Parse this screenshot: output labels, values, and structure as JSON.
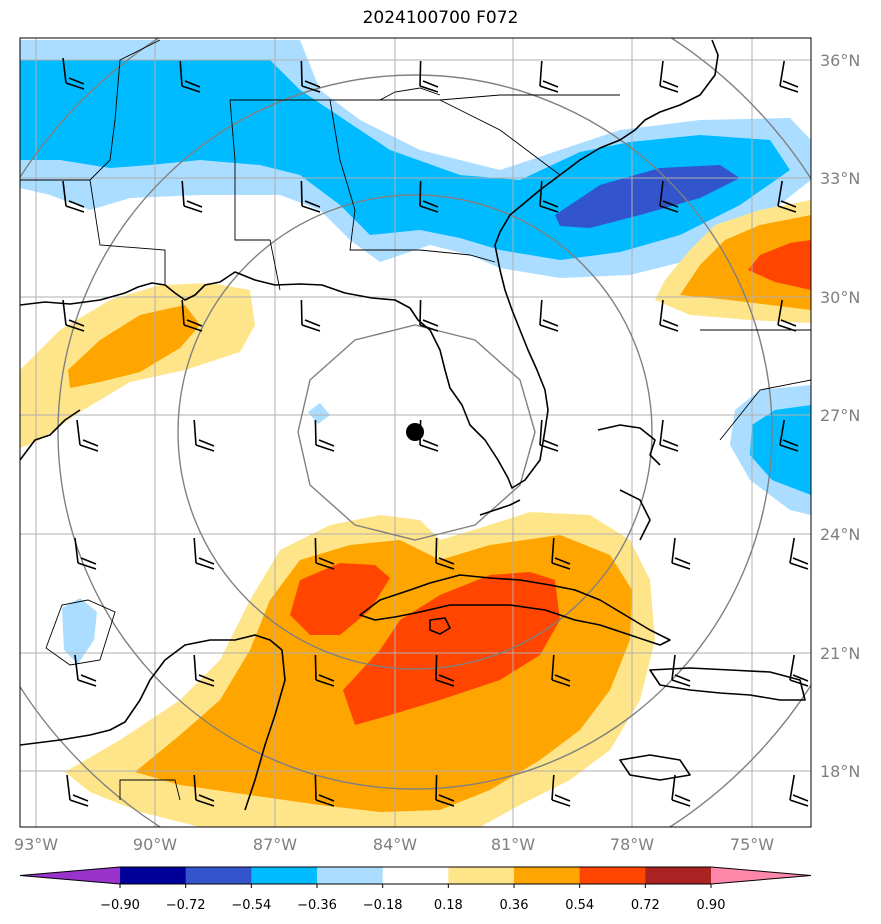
{
  "title": "2024100700 F072",
  "map": {
    "lat_labels": [
      "36°N",
      "33°N",
      "30°N",
      "27°N",
      "24°N",
      "21°N",
      "18°N"
    ],
    "lon_labels": [
      "93°W",
      "90°W",
      "87°W",
      "84°W",
      "81°W",
      "78°W",
      "75°W"
    ],
    "storm_center": {
      "lat": 26.5,
      "lon": -83.5
    }
  },
  "colorbar": {
    "labels": [
      "−0.90",
      "−0.72",
      "−0.54",
      "−0.36",
      "−0.18",
      "0.18",
      "0.36",
      "0.54",
      "0.72",
      "0.90"
    ],
    "colors": [
      "#9933cc",
      "#000099",
      "#3355cc",
      "#00bbff",
      "#aaddff",
      "#ffffff",
      "#ffe58a",
      "#ffa500",
      "#ff4500",
      "#aa2222",
      "#ff88aa"
    ],
    "extend": "both"
  },
  "colors": {
    "lightblue": "#aaddff",
    "blue": "#00bbff",
    "darkblue": "#3355cc",
    "yellow": "#ffe58a",
    "orange": "#ffa500",
    "redorange": "#ff4500",
    "grid": "#b0b0b0",
    "rings": "#808080"
  }
}
